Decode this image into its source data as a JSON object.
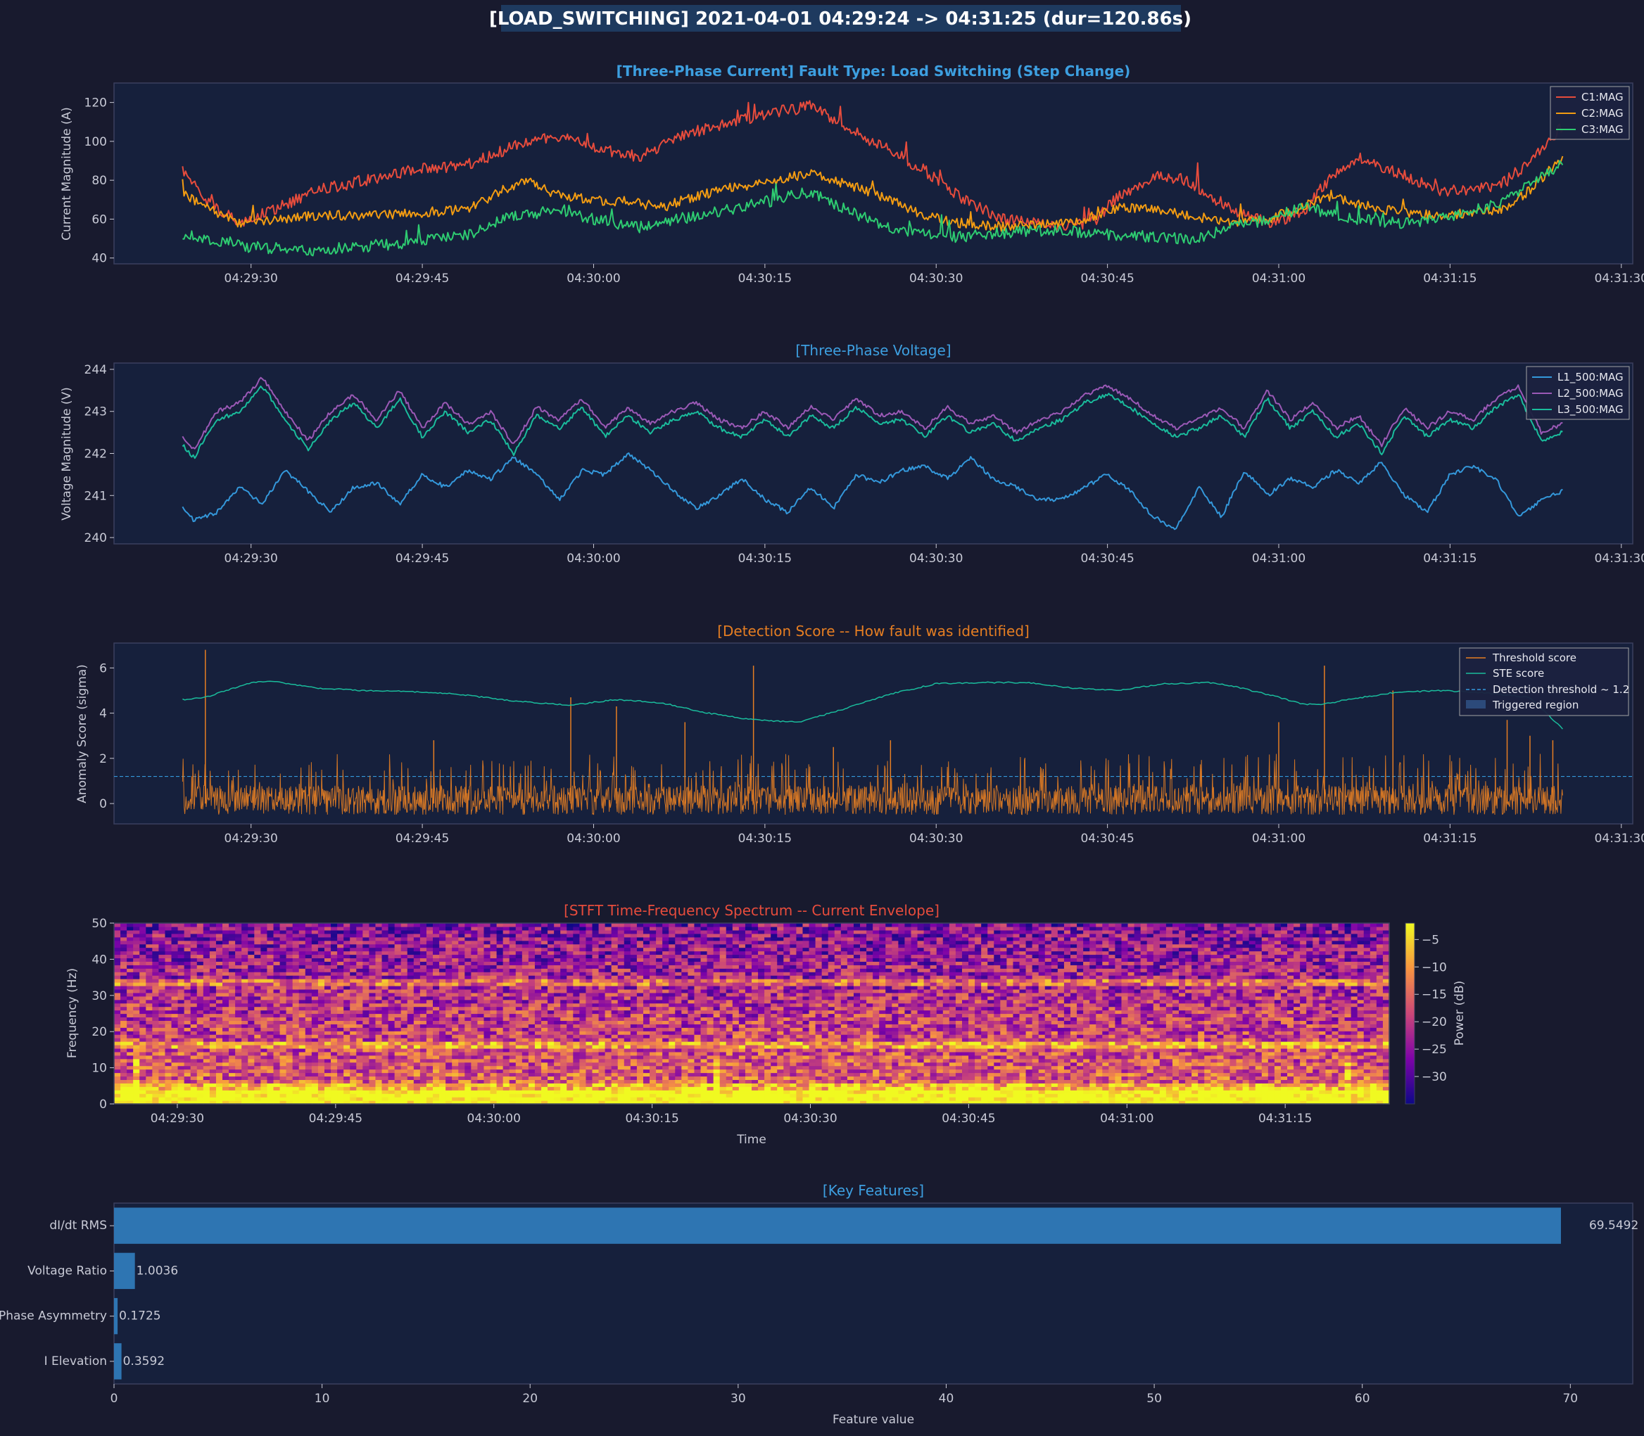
{
  "suptitle": "[LOAD_SWITCHING]  2021-04-01 04:29:24 -> 04:31:25  (dur=120.86s)",
  "colors": {
    "figure_bg": "#181a2e",
    "axes_bg": "#16203c",
    "title_box": "#1e3a5f",
    "C1": "#e74c3c",
    "C2": "#f39c12",
    "C3": "#2ecc71",
    "L1": "#3498db",
    "L2": "#9b59b6",
    "L3": "#1abc9c",
    "threshold_score": "#e67e22",
    "ste_score": "#1abc9c",
    "detection_line": "#3498db",
    "bars": "#2e75b2"
  },
  "chart_data": [
    {
      "type": "line",
      "title": "[Three-Phase Current]  Fault Type: Load Switching (Step Change)",
      "title_color": "#3d9fe0",
      "ylabel": "Current Magnitude (A)",
      "xlabel": "",
      "x_range": [
        "04:29:24",
        "04:31:25"
      ],
      "xlim": [
        "04:29:18",
        "04:31:31"
      ],
      "xticks": [
        "04:29:30",
        "04:29:45",
        "04:30:00",
        "04:30:15",
        "04:30:30",
        "04:30:45",
        "04:31:00",
        "04:31:15",
        "04:31:30"
      ],
      "ylim": [
        37,
        130
      ],
      "yticks": [
        40,
        60,
        80,
        100,
        120
      ],
      "legend": "top-right",
      "series": [
        {
          "name": "C1:MAG",
          "color": "#e74c3c",
          "x": [
            0,
            2,
            5,
            8,
            12,
            16,
            20,
            25,
            28,
            30,
            33,
            36,
            40,
            42,
            45,
            48,
            52,
            55,
            58,
            62,
            65,
            68,
            70,
            72,
            75,
            78,
            80,
            82,
            85,
            88,
            90,
            92,
            95,
            98,
            100,
            103,
            106,
            110,
            113,
            116,
            118,
            120.86
          ],
          "y": [
            86,
            70,
            58,
            65,
            75,
            80,
            85,
            88,
            95,
            100,
            103,
            97,
            92,
            98,
            105,
            110,
            115,
            118,
            108,
            95,
            85,
            72,
            65,
            60,
            58,
            56,
            60,
            72,
            82,
            80,
            72,
            65,
            58,
            62,
            78,
            92,
            85,
            75,
            74,
            80,
            90,
            108
          ],
          "noise": 3
        },
        {
          "name": "C2:MAG",
          "color": "#f39c12",
          "x": [
            0,
            2,
            5,
            8,
            12,
            16,
            20,
            25,
            28,
            30,
            33,
            36,
            40,
            42,
            45,
            48,
            52,
            55,
            58,
            62,
            65,
            68,
            70,
            72,
            75,
            78,
            80,
            82,
            85,
            88,
            90,
            92,
            95,
            98,
            100,
            103,
            106,
            110,
            113,
            116,
            118,
            120.86
          ],
          "y": [
            74,
            66,
            58,
            60,
            62,
            62,
            63,
            65,
            75,
            80,
            72,
            70,
            68,
            66,
            72,
            76,
            80,
            84,
            78,
            70,
            62,
            58,
            57,
            56,
            57,
            58,
            62,
            66,
            65,
            62,
            60,
            58,
            60,
            66,
            72,
            68,
            64,
            62,
            63,
            66,
            75,
            92
          ],
          "noise": 2.5
        },
        {
          "name": "C3:MAG",
          "color": "#2ecc71",
          "x": [
            0,
            2,
            5,
            8,
            12,
            16,
            20,
            25,
            28,
            30,
            33,
            36,
            40,
            42,
            45,
            48,
            52,
            55,
            58,
            62,
            65,
            68,
            70,
            72,
            75,
            78,
            80,
            82,
            85,
            88,
            90,
            92,
            95,
            98,
            100,
            103,
            106,
            110,
            113,
            116,
            118,
            120.86
          ],
          "y": [
            52,
            50,
            46,
            45,
            44,
            46,
            48,
            52,
            60,
            62,
            65,
            60,
            56,
            58,
            62,
            65,
            70,
            74,
            65,
            56,
            52,
            51,
            52,
            53,
            54,
            54,
            52,
            52,
            51,
            50,
            52,
            56,
            60,
            66,
            64,
            60,
            58,
            60,
            64,
            70,
            78,
            88
          ],
          "noise": 3
        }
      ]
    },
    {
      "type": "line",
      "title": "[Three-Phase Voltage]",
      "title_color": "#3d9fe0",
      "ylabel": "Voltage Magnitude (V)",
      "xlabel": "",
      "x_range": [
        "04:29:24",
        "04:31:25"
      ],
      "xlim": [
        "04:29:18",
        "04:31:31"
      ],
      "xticks": [
        "04:29:30",
        "04:29:45",
        "04:30:00",
        "04:30:15",
        "04:30:30",
        "04:30:45",
        "04:31:00",
        "04:31:15",
        "04:31:30"
      ],
      "ylim": [
        239.85,
        244.15
      ],
      "yticks": [
        240,
        241,
        242,
        243,
        244
      ],
      "legend": "top-right",
      "series": [
        {
          "name": "L1_500:MAG",
          "color": "#3498db",
          "x": [
            0,
            1,
            3,
            5,
            7,
            9,
            11,
            13,
            15,
            17,
            19,
            21,
            23,
            25,
            27,
            29,
            31,
            33,
            35,
            37,
            39,
            41,
            43,
            45,
            47,
            49,
            51,
            53,
            55,
            57,
            59,
            61,
            63,
            65,
            67,
            69,
            71,
            73,
            75,
            77,
            79,
            81,
            83,
            85,
            87,
            89,
            91,
            93,
            95,
            97,
            99,
            101,
            103,
            105,
            107,
            109,
            111,
            113,
            115,
            117,
            119,
            120.86
          ],
          "y": [
            240.7,
            240.4,
            240.6,
            241.2,
            240.8,
            241.6,
            241.1,
            240.6,
            241.2,
            241.3,
            240.8,
            241.5,
            241.2,
            241.6,
            241.4,
            241.9,
            241.5,
            240.9,
            241.6,
            241.5,
            242.0,
            241.6,
            241.1,
            240.7,
            241.0,
            241.4,
            240.9,
            240.6,
            241.2,
            240.7,
            241.5,
            241.3,
            241.6,
            241.7,
            241.4,
            241.9,
            241.4,
            241.2,
            240.9,
            240.9,
            241.2,
            241.5,
            241.1,
            240.5,
            240.2,
            241.2,
            240.5,
            241.6,
            241.0,
            241.4,
            241.2,
            241.6,
            241.3,
            241.8,
            241.0,
            240.6,
            241.5,
            241.7,
            241.4,
            240.5,
            240.9,
            241.1
          ],
          "noise": 0.05
        },
        {
          "name": "L2_500:MAG",
          "color": "#9b59b6",
          "x": [
            0,
            1,
            3,
            5,
            7,
            9,
            11,
            13,
            15,
            17,
            19,
            21,
            23,
            25,
            27,
            29,
            31,
            33,
            35,
            37,
            39,
            41,
            43,
            45,
            47,
            49,
            51,
            53,
            55,
            57,
            59,
            61,
            63,
            65,
            67,
            69,
            71,
            73,
            75,
            77,
            79,
            81,
            83,
            85,
            87,
            89,
            91,
            93,
            95,
            97,
            99,
            101,
            103,
            105,
            107,
            109,
            111,
            113,
            115,
            117,
            119,
            120.86
          ],
          "y": [
            242.4,
            242.1,
            243.0,
            243.2,
            243.8,
            243.0,
            242.3,
            243.0,
            243.4,
            242.8,
            243.5,
            242.6,
            243.2,
            242.7,
            243.0,
            242.2,
            243.1,
            242.8,
            243.3,
            242.6,
            243.1,
            242.7,
            243.0,
            243.2,
            242.8,
            242.6,
            243.0,
            242.6,
            243.1,
            242.8,
            243.3,
            242.9,
            243.0,
            242.6,
            243.1,
            242.7,
            242.9,
            242.5,
            242.8,
            243.0,
            243.4,
            243.6,
            243.3,
            242.9,
            242.6,
            242.8,
            243.1,
            242.6,
            243.5,
            242.8,
            243.2,
            242.6,
            242.9,
            242.2,
            243.1,
            242.6,
            243.0,
            242.8,
            243.3,
            243.6,
            242.5,
            242.7
          ],
          "noise": 0.05
        },
        {
          "name": "L3_500:MAG",
          "color": "#1abc9c",
          "x": [
            0,
            1,
            3,
            5,
            7,
            9,
            11,
            13,
            15,
            17,
            19,
            21,
            23,
            25,
            27,
            29,
            31,
            33,
            35,
            37,
            39,
            41,
            43,
            45,
            47,
            49,
            51,
            53,
            55,
            57,
            59,
            61,
            63,
            65,
            67,
            69,
            71,
            73,
            75,
            77,
            79,
            81,
            83,
            85,
            87,
            89,
            91,
            93,
            95,
            97,
            99,
            101,
            103,
            105,
            107,
            109,
            111,
            113,
            115,
            117,
            119,
            120.86
          ],
          "y": [
            242.2,
            241.9,
            242.8,
            243.0,
            243.6,
            242.8,
            242.1,
            242.8,
            243.2,
            242.6,
            243.3,
            242.4,
            243.0,
            242.5,
            242.8,
            242.0,
            242.9,
            242.6,
            243.1,
            242.4,
            242.9,
            242.5,
            242.8,
            243.0,
            242.6,
            242.4,
            242.8,
            242.4,
            242.9,
            242.6,
            243.1,
            242.7,
            242.8,
            242.4,
            242.9,
            242.5,
            242.7,
            242.3,
            242.6,
            242.8,
            243.2,
            243.4,
            243.1,
            242.7,
            242.4,
            242.6,
            242.9,
            242.4,
            243.3,
            242.6,
            243.0,
            242.4,
            242.7,
            242.0,
            242.9,
            242.4,
            242.8,
            242.6,
            243.1,
            243.4,
            242.3,
            242.5
          ],
          "noise": 0.05
        }
      ]
    },
    {
      "type": "line",
      "title": "[Detection Score -- How fault was identified]",
      "title_color": "#e67e22",
      "ylabel": "Anomaly Score (sigma)",
      "xlabel": "",
      "x_range": [
        "04:29:24",
        "04:31:25"
      ],
      "xlim": [
        "04:29:18",
        "04:31:31"
      ],
      "xticks": [
        "04:29:30",
        "04:29:45",
        "04:30:00",
        "04:30:15",
        "04:30:30",
        "04:30:45",
        "04:31:00",
        "04:31:15",
        "04:31:30"
      ],
      "ylim": [
        -0.9,
        7.1
      ],
      "yticks": [
        0,
        2,
        4,
        6
      ],
      "legend": "top-right",
      "detection_threshold": 1.2,
      "legend_entries": [
        "Threshold score",
        "STE score",
        "Detection threshold ~ 1.2",
        "Triggered region"
      ],
      "series": [
        {
          "name": "Threshold score",
          "color": "#e67e22",
          "band": [
            -0.5,
            0.8
          ],
          "spikes_x": [
            2,
            22,
            34,
            38,
            44,
            50,
            57,
            62,
            96,
            100,
            106,
            116,
            118,
            120
          ],
          "spikes_y": [
            6.8,
            2.8,
            4.7,
            4.3,
            3.6,
            6.1,
            2.5,
            2.8,
            3.6,
            6.1,
            5.0,
            3.7,
            3.0,
            2.8
          ]
        },
        {
          "name": "STE score",
          "color": "#1abc9c",
          "x": [
            0,
            2,
            6,
            8,
            12,
            16,
            20,
            24,
            28,
            30,
            34,
            38,
            42,
            46,
            50,
            54,
            58,
            62,
            66,
            70,
            74,
            78,
            82,
            86,
            90,
            92,
            96,
            98,
            100,
            102,
            106,
            110,
            114,
            118,
            120.86
          ],
          "y": [
            4.6,
            4.7,
            5.35,
            5.4,
            5.1,
            5.0,
            4.95,
            4.85,
            4.6,
            4.5,
            4.35,
            4.6,
            4.45,
            4.0,
            3.7,
            3.6,
            4.2,
            4.85,
            5.3,
            5.35,
            5.35,
            5.1,
            5.0,
            5.3,
            5.35,
            5.2,
            4.7,
            4.4,
            4.4,
            4.6,
            4.9,
            5.0,
            4.9,
            4.7,
            3.3
          ]
        }
      ]
    },
    {
      "type": "heatmap",
      "title": "[STFT Time-Frequency Spectrum -- Current Envelope]",
      "title_color": "#e74c3c",
      "ylabel": "Frequency (Hz)",
      "xlabel": "Time",
      "x_range": [
        "04:29:24",
        "04:31:25"
      ],
      "xticks": [
        "04:29:30",
        "04:29:45",
        "04:30:00",
        "04:30:15",
        "04:30:30",
        "04:30:45",
        "04:31:00",
        "04:31:15"
      ],
      "ylim": [
        0,
        50
      ],
      "yticks": [
        0,
        10,
        20,
        30,
        40,
        50
      ],
      "colorbar": {
        "label": "Power (dB)",
        "range": [
          -35,
          -2
        ],
        "ticks": [
          -5,
          -10,
          -15,
          -20,
          -25,
          -30
        ]
      },
      "bright_bands_hz": [
        1,
        4,
        16,
        33
      ],
      "time_bins": 200,
      "freq_bins": 52
    },
    {
      "type": "bar",
      "orientation": "horizontal",
      "title": "[Key Features]",
      "title_color": "#3d9fe0",
      "xlabel": "Feature value",
      "ylabel": "",
      "categories": [
        "dI/dt RMS",
        "Voltage Ratio",
        "Phase Asymmetry",
        "I Elevation"
      ],
      "values": [
        69.5492,
        1.0036,
        0.1725,
        0.3592
      ],
      "value_labels": [
        "69.5492",
        "1.0036",
        "0.1725",
        "0.3592"
      ],
      "xlim": [
        0,
        73
      ],
      "xticks": [
        0,
        10,
        20,
        30,
        40,
        50,
        60,
        70
      ]
    }
  ]
}
